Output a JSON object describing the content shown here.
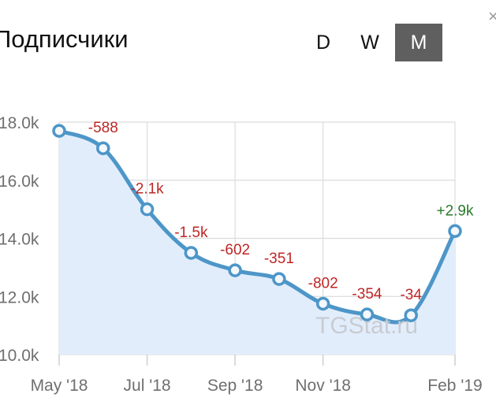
{
  "header": {
    "title": "Подписчики",
    "periods": [
      {
        "label": "D",
        "active": false
      },
      {
        "label": "W",
        "active": false
      },
      {
        "label": "M",
        "active": true
      }
    ],
    "close_glyph": "×"
  },
  "watermark": "TGStat.ru",
  "colors": {
    "line": "#4d96c8",
    "area": "#e2edfc",
    "grid": "#dcdcdc",
    "negative": "#bf2626",
    "positive": "#2c7a2c",
    "active_button": "#5f5f5f"
  },
  "chart_data": {
    "type": "area",
    "title": "Подписчики",
    "xlabel": "",
    "ylabel": "",
    "x_ticks": [
      {
        "label": "May '18",
        "x": 0
      },
      {
        "label": "Jul '18",
        "x": 2
      },
      {
        "label": "Sep '18",
        "x": 4
      },
      {
        "label": "Nov '18",
        "x": 6
      },
      {
        "label": "Feb '19",
        "x": 9
      }
    ],
    "y_ticks": [
      10000,
      12000,
      14000,
      16000,
      18000
    ],
    "y_tick_labels": [
      "10.0k",
      "12.0k",
      "14.0k",
      "16.0k",
      "18.0k"
    ],
    "ylim": [
      10000,
      18000
    ],
    "xlim": [
      0,
      9
    ],
    "grid": true,
    "legend": "none",
    "series": [
      {
        "points": [
          {
            "month": "May '18",
            "x": 0,
            "y": 17700,
            "label": ""
          },
          {
            "month": "Jun '18",
            "x": 1,
            "y": 17100,
            "label": "-588"
          },
          {
            "month": "Jul '18",
            "x": 2,
            "y": 15000,
            "label": "-2.1k"
          },
          {
            "month": "Aug '18",
            "x": 3,
            "y": 13500,
            "label": "-1.5k"
          },
          {
            "month": "Sep '18",
            "x": 4,
            "y": 12900,
            "label": "-602"
          },
          {
            "month": "Oct '18",
            "x": 5,
            "y": 12600,
            "label": "-351"
          },
          {
            "month": "Nov '18",
            "x": 6,
            "y": 11750,
            "label": "-802"
          },
          {
            "month": "Dec '18",
            "x": 7,
            "y": 11380,
            "label": "-354"
          },
          {
            "month": "Jan '19",
            "x": 8,
            "y": 11350,
            "label": "-34"
          },
          {
            "month": "Feb '19",
            "x": 9,
            "y": 14250,
            "label": "+2.9k"
          }
        ]
      }
    ]
  }
}
